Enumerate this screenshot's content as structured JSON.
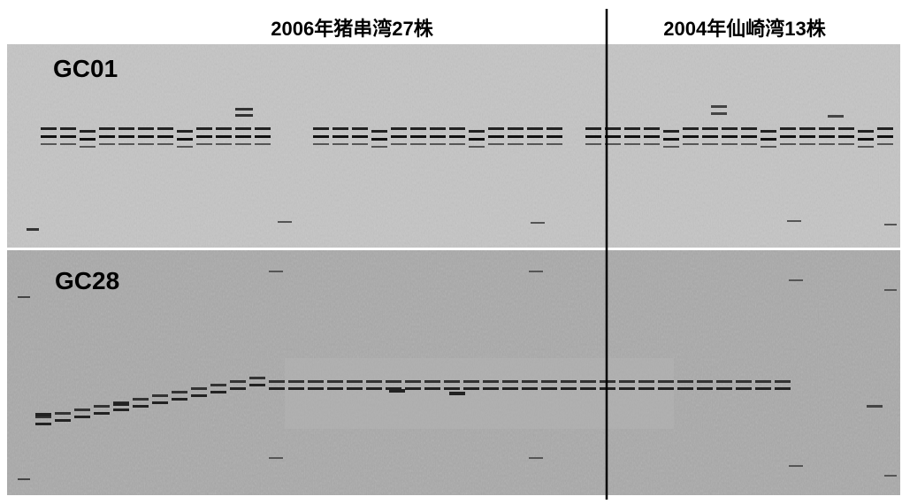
{
  "header": {
    "left": "2006年猪串湾27株",
    "right": "2004年仙崎湾13株"
  },
  "panels": [
    {
      "label": "GC01"
    },
    {
      "label": "GC28"
    }
  ]
}
